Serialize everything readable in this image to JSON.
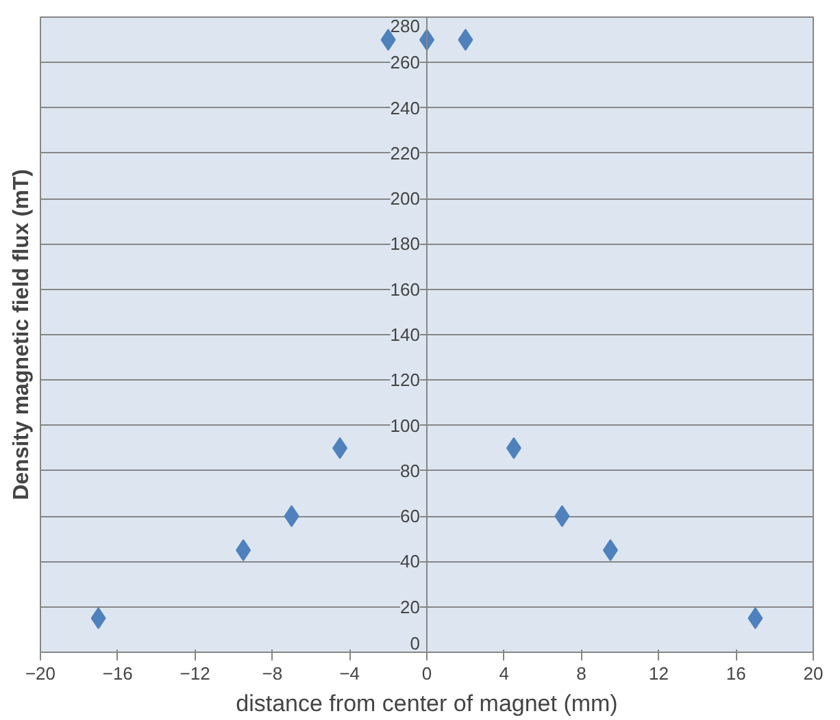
{
  "chart_data": {
    "type": "scatter",
    "xlabel": "distance from center of magnet (mm)",
    "ylabel": "Density magnetic field flux (mT)",
    "x": [
      -17,
      -9.5,
      -7,
      -4.5,
      -2,
      0,
      2,
      4.5,
      7,
      9.5,
      17
    ],
    "series": [
      {
        "color": "#4f81bd",
        "values": [
          15,
          45,
          60,
          90,
          270,
          270,
          270,
          90,
          60,
          45,
          15
        ]
      }
    ],
    "xlim": [
      -20,
      20
    ],
    "xticks": [
      -20,
      -16,
      -12,
      -8,
      -4,
      0,
      4,
      8,
      12,
      16,
      20
    ],
    "ylim": [
      0,
      280
    ],
    "yticks": [
      0,
      20,
      40,
      60,
      80,
      100,
      120,
      140,
      160,
      180,
      200,
      220,
      240,
      260,
      280
    ],
    "grid": "y",
    "marker": "diamond"
  }
}
